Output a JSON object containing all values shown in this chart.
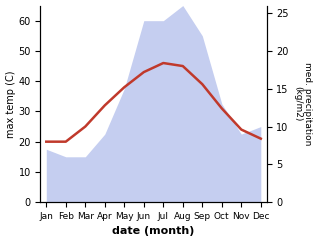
{
  "months": [
    "Jan",
    "Feb",
    "Mar",
    "Apr",
    "May",
    "Jun",
    "Jul",
    "Aug",
    "Sep",
    "Oct",
    "Nov",
    "Dec"
  ],
  "temperature": [
    20,
    20,
    25,
    32,
    38,
    43,
    46,
    45,
    39,
    31,
    24,
    21
  ],
  "precipitation": [
    7,
    6,
    6,
    9,
    15,
    24,
    24,
    26,
    22,
    13,
    9,
    10
  ],
  "temp_color": "#c0392b",
  "precip_fill_color": "#c5cef0",
  "temp_ylim": [
    0,
    65
  ],
  "temp_yticks": [
    0,
    10,
    20,
    30,
    40,
    50,
    60
  ],
  "precip_ylim": [
    0,
    26
  ],
  "precip_yticks": [
    0,
    5,
    10,
    15,
    20,
    25
  ],
  "ylabel_left": "max temp (C)",
  "ylabel_right": "med. precipitation\n(kg/m2)",
  "xlabel": "date (month)"
}
